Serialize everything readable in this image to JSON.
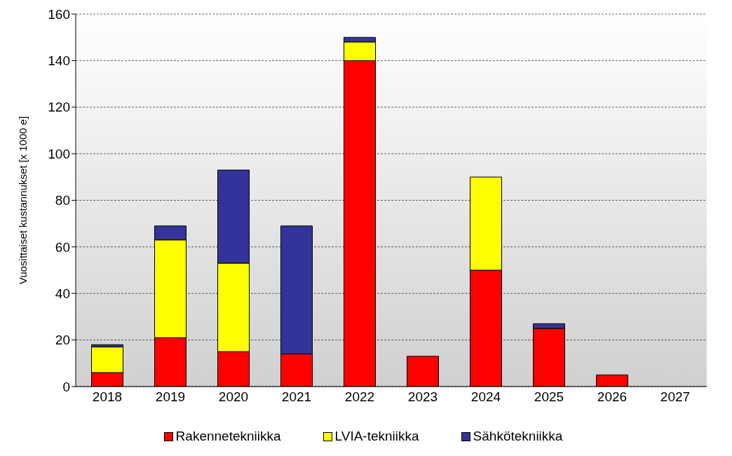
{
  "chart_data": {
    "type": "bar",
    "ylabel": "Vuosittaiset kustannukset [x 1000 e]",
    "categories": [
      "2018",
      "2019",
      "2020",
      "2021",
      "2022",
      "2023",
      "2024",
      "2025",
      "2026",
      "2027"
    ],
    "stacked": true,
    "series": [
      {
        "name": "Rakennetekniikka",
        "color": "#ff0000",
        "values": [
          6,
          21,
          15,
          14,
          140,
          13,
          50,
          25,
          5,
          0
        ]
      },
      {
        "name": "LVIA-tekniikka",
        "color": "#ffff00",
        "values": [
          11,
          42,
          38,
          0,
          8,
          0,
          40,
          0,
          0,
          0
        ]
      },
      {
        "name": "Sähkötekniikka",
        "color": "#333399",
        "values": [
          1,
          6,
          40,
          55,
          2,
          0,
          0,
          2,
          0,
          0
        ]
      }
    ],
    "ylim": [
      0,
      160
    ],
    "yticks": [
      0,
      20,
      40,
      60,
      80,
      100,
      120,
      140,
      160
    ],
    "grid": "y",
    "legend": "bottom"
  }
}
